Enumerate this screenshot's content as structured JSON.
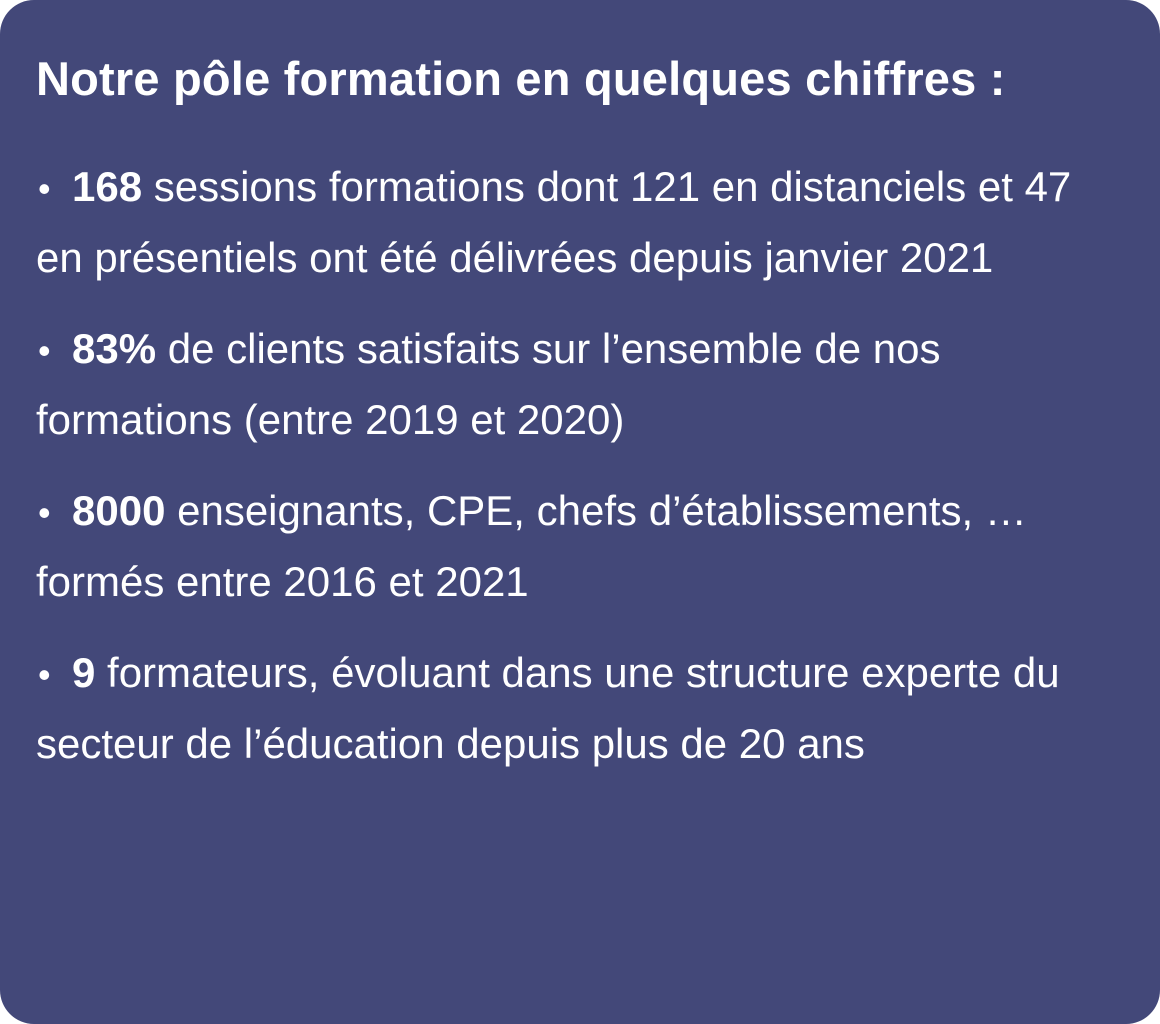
{
  "card": {
    "title": "Notre pôle formation en quelques chiffres :",
    "background_color": "#434879",
    "text_color": "#ffffff",
    "items": [
      {
        "bullet": "•",
        "number": "168",
        "text": " sessions formations dont 121 en distanciels et 47 en présentiels ont été délivrées depuis janvier 2021"
      },
      {
        "bullet": "•",
        "number": "83%",
        "text": " de clients satisfaits sur l’ensemble de nos formations (entre 2019 et 2020)"
      },
      {
        "bullet": "•",
        "number": "8000",
        "text": " enseignants, CPE, chefs d’établissements, …  formés entre 2016 et 2021"
      },
      {
        "bullet": "•",
        "number": "9",
        "text": " formateurs, évoluant dans une structure experte du secteur de l’éducation depuis plus de 20 ans"
      }
    ]
  }
}
